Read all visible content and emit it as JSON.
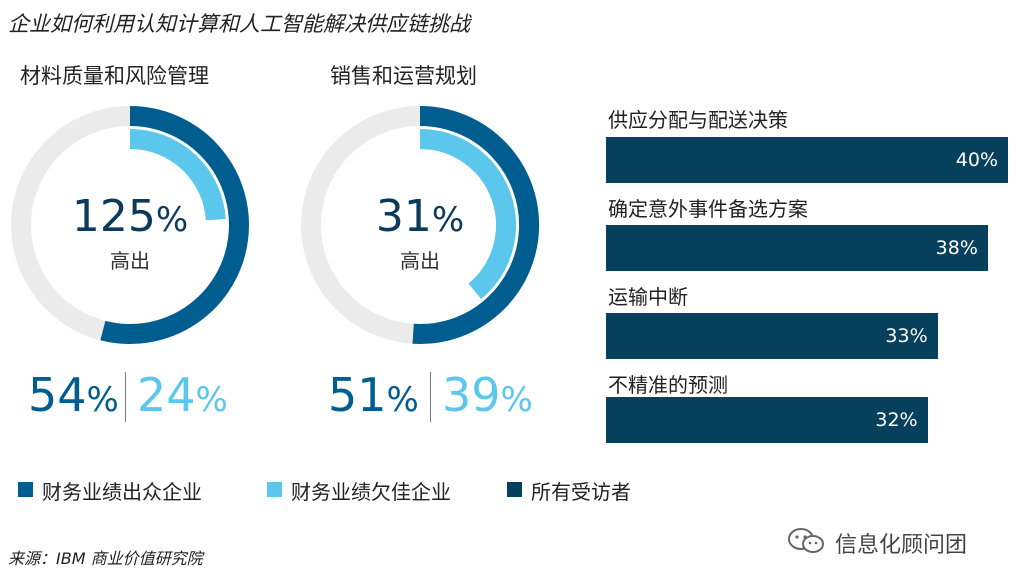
{
  "page_title": "企业如何利用认知计算和人工智能解决供应链挑战",
  "source": "来源：IBM 商业价值研究院",
  "watermark": "信息化顾问团",
  "colors": {
    "outperformer": "#005d8f",
    "underperformer": "#5bc7ec",
    "all": "#06405c",
    "track": "#ebebeb"
  },
  "donuts": [
    {
      "title": "材料质量和风险管理",
      "center_value": "125",
      "center_unit": "%",
      "center_label": "高出",
      "outperformer_value": "54",
      "underperformer_value": "24",
      "unit": "%"
    },
    {
      "title": "销售和运营规划",
      "center_value": "31",
      "center_unit": "%",
      "center_label": "高出",
      "outperformer_value": "51",
      "underperformer_value": "39",
      "unit": "%"
    }
  ],
  "legend": [
    {
      "label": "财务业绩出众企业",
      "color": "#005d8f"
    },
    {
      "label": "财务业绩欠佳企业",
      "color": "#5bc7ec"
    },
    {
      "label": "所有受访者",
      "color": "#06405c"
    }
  ],
  "chart_data": [
    {
      "type": "pie",
      "title": "材料质量和风险管理",
      "series": [
        {
          "name": "财务业绩出众企业",
          "values": [
            54
          ]
        },
        {
          "name": "财务业绩欠佳企业",
          "values": [
            24
          ]
        }
      ],
      "annotation": "125% 高出"
    },
    {
      "type": "pie",
      "title": "销售和运营规划",
      "series": [
        {
          "name": "财务业绩出众企业",
          "values": [
            51
          ]
        },
        {
          "name": "财务业绩欠佳企业",
          "values": [
            39
          ]
        }
      ],
      "annotation": "31% 高出"
    },
    {
      "type": "bar",
      "orientation": "horizontal",
      "categories": [
        "供应分配与配送决策",
        "确定意外事件备选方案",
        "运输中断",
        "不精准的预测"
      ],
      "series": [
        {
          "name": "所有受访者",
          "values": [
            40,
            38,
            33,
            32
          ]
        }
      ],
      "value_labels": [
        "40%",
        "38%",
        "33%",
        "32%"
      ]
    }
  ]
}
